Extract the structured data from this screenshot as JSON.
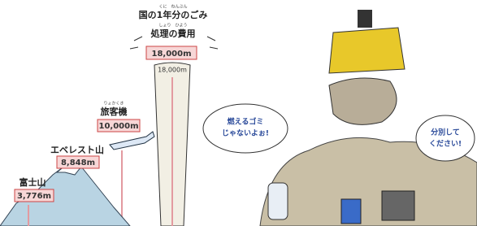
{
  "left_panel": {
    "title_ruby": "くに　ねんぶん",
    "title_line1": "国の1年分のごみ",
    "title_ruby2": "しょり　ひよう",
    "title_line2": "処理の費用",
    "column_label": "18,000m",
    "column_top_label": "18,000m",
    "plane_ruby": "りょかくき",
    "plane_name": "旅客機",
    "plane_height": "10,000m",
    "everest_name": "エベレスト山",
    "everest_height": "8,848m",
    "fuji_name": "富士山",
    "fuji_height": "3,776m"
  },
  "right_panel": {
    "bubble_left": [
      "燃えるゴミ",
      "じゃないよぉ!"
    ],
    "bubble_right": [
      "分別して",
      "ください!"
    ]
  }
}
